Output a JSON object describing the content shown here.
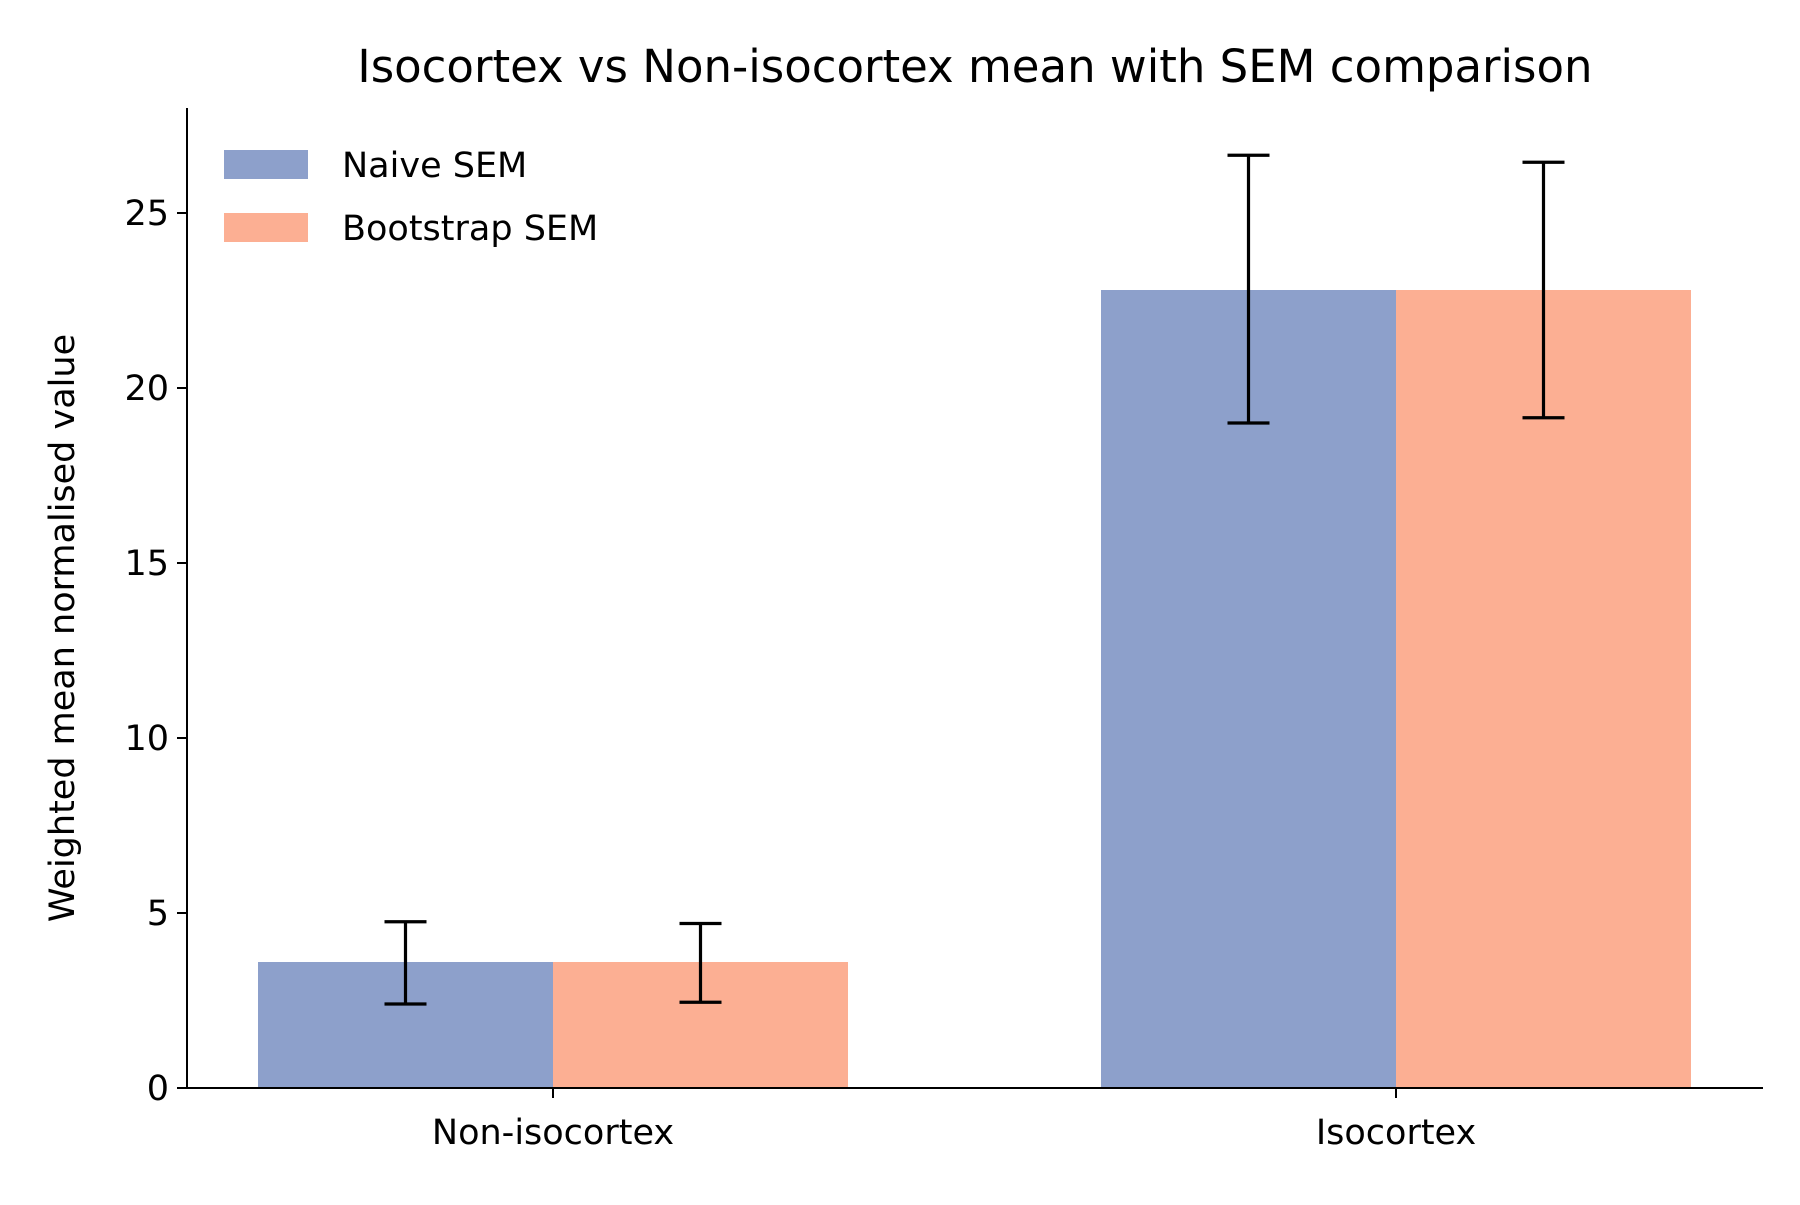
{
  "chart_data": {
    "type": "bar",
    "title": "Isocortex vs Non-isocortex mean with SEM comparison",
    "xlabel": "",
    "ylabel": "Weighted mean normalised value",
    "categories": [
      "Non-isocortex",
      "Isocortex"
    ],
    "ylim": [
      0,
      28
    ],
    "yticks": [
      0,
      5,
      10,
      15,
      20,
      25
    ],
    "legend_position": "top-left",
    "grid": false,
    "series": [
      {
        "name": "Naive SEM",
        "color": "#8da0cb",
        "values": [
          3.6,
          22.8
        ],
        "error_low": [
          2.4,
          19.0
        ],
        "error_high": [
          4.75,
          26.65
        ]
      },
      {
        "name": "Bootstrap SEM",
        "color": "#fcaf93",
        "values": [
          3.6,
          22.8
        ],
        "error_low": [
          2.45,
          19.15
        ],
        "error_high": [
          4.7,
          26.45
        ]
      }
    ]
  }
}
